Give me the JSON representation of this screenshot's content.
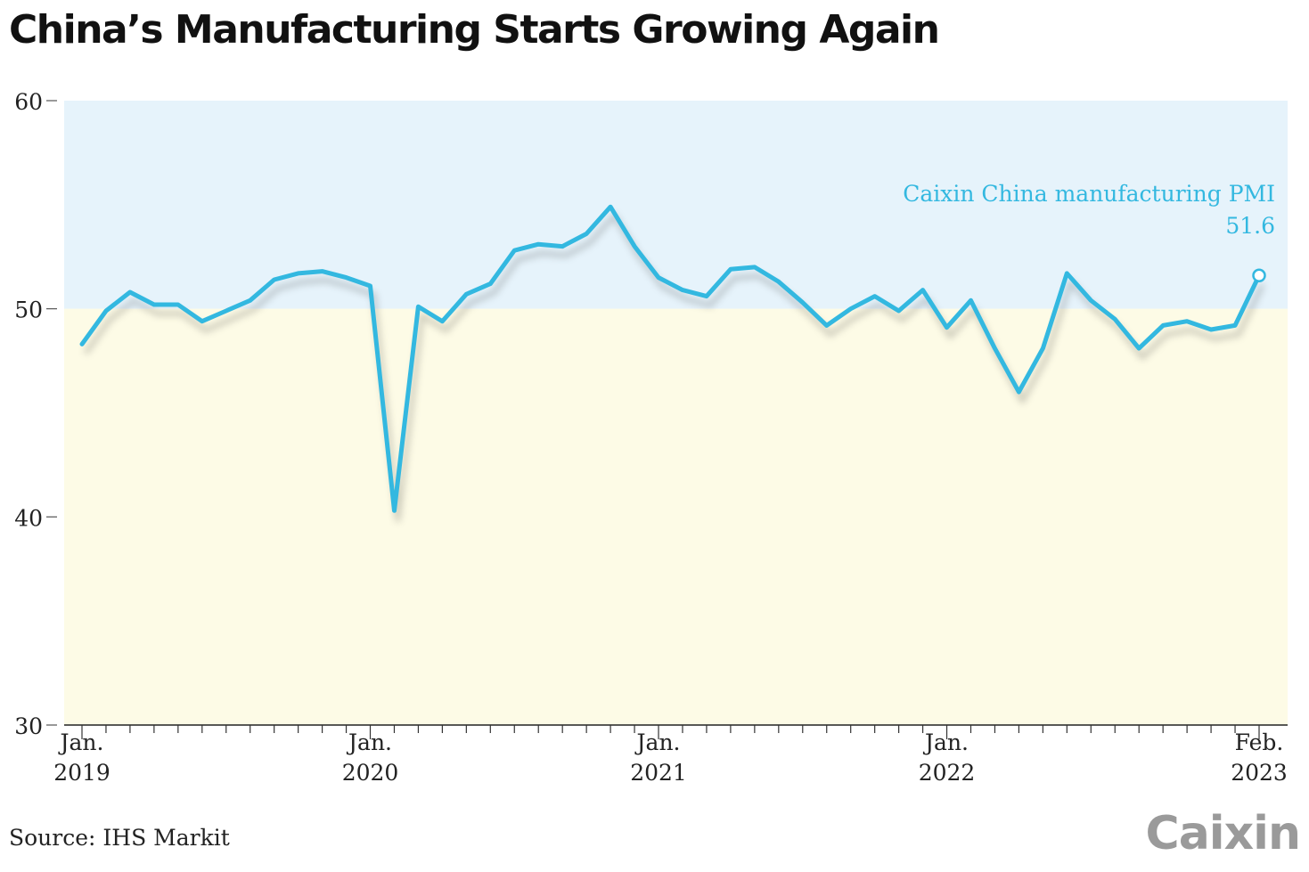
{
  "title": "China’s Manufacturing Starts Growing Again",
  "source": "Source: IHS Markit",
  "logo": "Caixin",
  "colors": {
    "line": "#33b8e0",
    "expansion_band": "#e6f3fb",
    "contraction_band": "#fdfbe6",
    "axis": "#222222"
  },
  "chart_data": {
    "type": "line",
    "title": "",
    "xlabel": "",
    "ylabel": "",
    "ylim": [
      30,
      60
    ],
    "yticks": [
      30,
      40,
      50,
      60
    ],
    "threshold": 50,
    "grid": false,
    "x_tick_labels": [
      {
        "index": 0,
        "line1": "Jan.",
        "line2": "2019"
      },
      {
        "index": 12,
        "line1": "Jan.",
        "line2": "2020"
      },
      {
        "index": 24,
        "line1": "Jan.",
        "line2": "2021"
      },
      {
        "index": 36,
        "line1": "Jan.",
        "line2": "2022"
      },
      {
        "index": 49,
        "line1": "Feb.",
        "line2": "2023"
      }
    ],
    "series": [
      {
        "name": "Caixin China manufacturing PMI",
        "last_value_label": "51.6",
        "start": "2019-01",
        "values": [
          48.3,
          49.9,
          50.8,
          50.2,
          50.2,
          49.4,
          49.9,
          50.4,
          51.4,
          51.7,
          51.8,
          51.5,
          51.1,
          40.3,
          50.1,
          49.4,
          50.7,
          51.2,
          52.8,
          53.1,
          53.0,
          53.6,
          54.9,
          53.0,
          51.5,
          50.9,
          50.6,
          51.9,
          52.0,
          51.3,
          50.3,
          49.2,
          50.0,
          50.6,
          49.9,
          50.9,
          49.1,
          50.4,
          48.1,
          46.0,
          48.1,
          51.7,
          50.4,
          49.5,
          48.1,
          49.2,
          49.4,
          49.0,
          49.2,
          51.6
        ]
      }
    ]
  }
}
